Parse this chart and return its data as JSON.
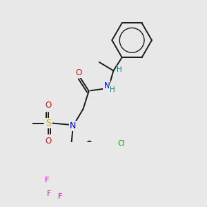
{
  "bg_color": "#e8e8e8",
  "bond_color": "#1a1a1a",
  "atom_colors": {
    "O": "#ff0000",
    "N": "#0000cc",
    "H": "#008080",
    "Cl": "#00aa00",
    "F": "#cc00cc",
    "S": "#ccaa00",
    "C": "#1a1a1a"
  },
  "figsize": [
    3.0,
    3.0
  ],
  "dpi": 100
}
